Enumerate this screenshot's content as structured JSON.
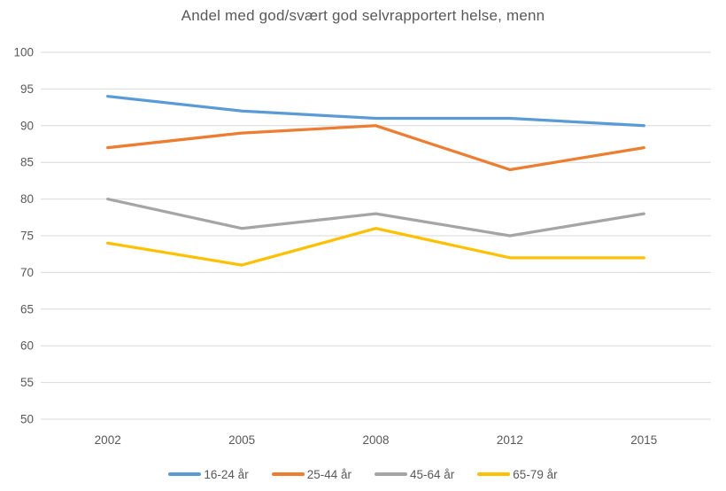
{
  "chart_data": {
    "type": "line",
    "title": "Andel med god/svært god selvrapportert helse, menn",
    "categories": [
      "2002",
      "2005",
      "2008",
      "2012",
      "2015"
    ],
    "series": [
      {
        "name": "16-24 år",
        "color": "#5B9BD5",
        "values": [
          94,
          92,
          91,
          91,
          90
        ]
      },
      {
        "name": "25-44 år",
        "color": "#ED7D31",
        "values": [
          87,
          89,
          90,
          84,
          87
        ]
      },
      {
        "name": "45-64 år",
        "color": "#A5A5A5",
        "values": [
          80,
          76,
          78,
          75,
          78
        ]
      },
      {
        "name": "65-79 år",
        "color": "#FFC000",
        "values": [
          74,
          71,
          76,
          72,
          72
        ]
      }
    ],
    "xlabel": "",
    "ylabel": "",
    "ylim": [
      50,
      100
    ],
    "ytick_step": 5,
    "grid": true,
    "legend_position": "bottom"
  },
  "style": {
    "text_color": "#595959",
    "gridline_color": "#D9D9D9",
    "background": "#FFFFFF"
  }
}
